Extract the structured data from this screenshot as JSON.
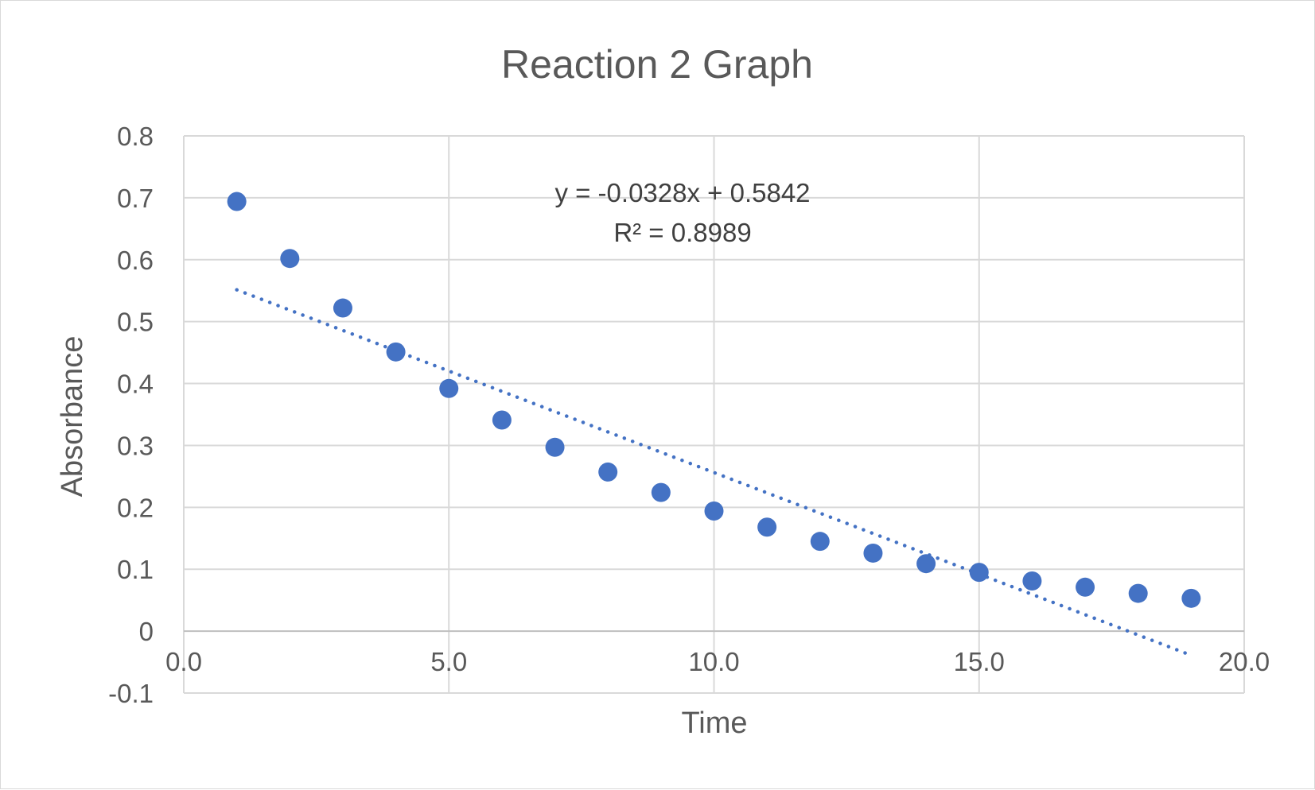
{
  "chart_data": {
    "type": "scatter",
    "title": "Reaction 2 Graph",
    "xlabel": "Time",
    "ylabel": "Absorbance",
    "xlim": [
      0,
      20
    ],
    "ylim": [
      -0.1,
      0.8
    ],
    "xticks": [
      0,
      5,
      10,
      15,
      20
    ],
    "xtick_labels": [
      "0.0",
      "5.0",
      "10.0",
      "15.0",
      "20.0"
    ],
    "yticks": [
      -0.1,
      0,
      0.1,
      0.2,
      0.3,
      0.4,
      0.5,
      0.6,
      0.7,
      0.8
    ],
    "ytick_labels": [
      "-0.1",
      "0",
      "0.1",
      "0.2",
      "0.3",
      "0.4",
      "0.5",
      "0.6",
      "0.7",
      "0.8"
    ],
    "grid": true,
    "legend": "none",
    "series": [
      {
        "color": "#4472c4",
        "x": [
          1,
          2,
          3,
          4,
          5,
          6,
          7,
          8,
          9,
          10,
          11,
          12,
          13,
          14,
          15,
          16,
          17,
          18,
          19
        ],
        "y": [
          0.694,
          0.602,
          0.522,
          0.451,
          0.392,
          0.341,
          0.297,
          0.257,
          0.224,
          0.194,
          0.168,
          0.145,
          0.126,
          0.109,
          0.095,
          0.081,
          0.071,
          0.061,
          0.053
        ]
      }
    ],
    "trendline": {
      "type": "linear",
      "style": "dotted",
      "color": "#4472c4",
      "slope": -0.0328,
      "intercept": 0.5842,
      "x_range": [
        1,
        19
      ],
      "equation_label": "y = -0.0328x + 0.5842",
      "r2_label": "R² = 0.8989"
    }
  }
}
